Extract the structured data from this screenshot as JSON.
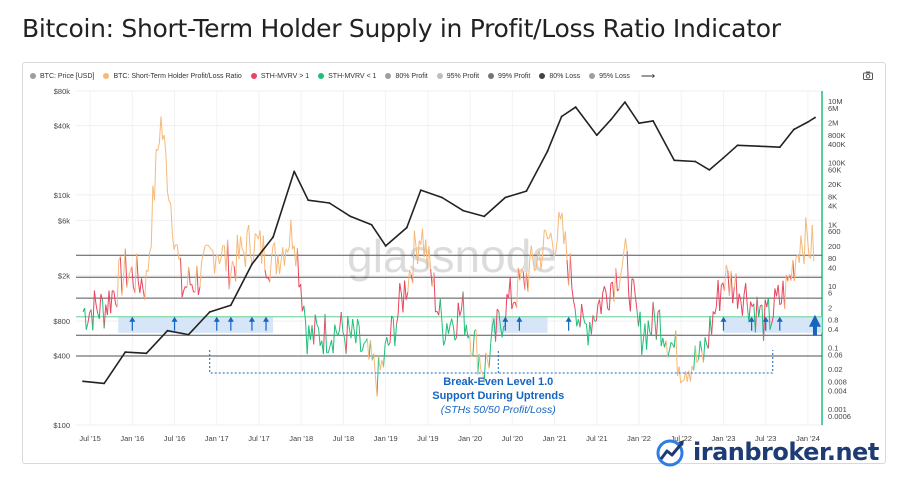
{
  "page": {
    "title": "Bitcoin: Short-Term Holder Supply in Profit/Loss Ratio Indicator"
  },
  "legend": {
    "items": [
      {
        "label": "BTC: Price [USD]",
        "color": "#9e9e9e"
      },
      {
        "label": "BTC: Short-Term Holder Profit/Loss Ratio",
        "color": "#f5b97a"
      },
      {
        "label": "STH-MVRV > 1",
        "color": "#e8455f"
      },
      {
        "label": "STH-MVRV < 1",
        "color": "#1fbf7a"
      },
      {
        "label": "80% Profit",
        "color": "#9e9e9e"
      },
      {
        "label": "95% Profit",
        "color": "#bdbdbd"
      },
      {
        "label": "99% Profit",
        "color": "#757575"
      },
      {
        "label": "80% Loss",
        "color": "#424242"
      },
      {
        "label": "95% Loss",
        "color": "#9e9e9e"
      }
    ],
    "more": "⟶"
  },
  "watermark": "glassnode",
  "annotation": {
    "line1": "Break-Even Level 1.0",
    "line2": "Support During Uptrends",
    "line3": "(STHs 50/50 Profit/Loss)"
  },
  "brand": {
    "name": "iranbroker.net"
  },
  "colors": {
    "price": "#222222",
    "ratio": "#f5b97a",
    "above": "#e8455f",
    "below": "#1fbf7a",
    "accent_axis": "#1fbf7a",
    "annotation": "#1565c0",
    "highlight": "#cfe0f7"
  },
  "chart_data": {
    "type": "line",
    "x_axis": {
      "ticks": [
        "Jul '15",
        "Jan '16",
        "Jul '16",
        "Jan '17",
        "Jul '17",
        "Jan '18",
        "Jul '18",
        "Jan '19",
        "Jul '19",
        "Jan '20",
        "Jul '20",
        "Jan '21",
        "Jul '21",
        "Jan '22",
        "Jul '22",
        "Jan '23",
        "Jul '23",
        "Jan '24"
      ],
      "range": [
        "2015-05",
        "2024-03"
      ]
    },
    "y_left": {
      "scale": "log",
      "unit": "USD",
      "ticks": [
        "$80k",
        "$40k",
        "$10k",
        "$6k",
        "$2k",
        "$800",
        "$400",
        "$100"
      ],
      "range": [
        100,
        80000
      ]
    },
    "y_right": {
      "scale": "log",
      "ticks": [
        "10M",
        "6M",
        "2M",
        "800K",
        "400K",
        "100K",
        "60K",
        "20K",
        "8K",
        "4K",
        "1K",
        "600",
        "200",
        "80",
        "40",
        "10",
        "6",
        "2",
        "0.8",
        "0.4",
        "0.1",
        "0.06",
        "0.02",
        "0.008",
        "0.004",
        "0.001",
        "0.0006"
      ],
      "range": [
        0.0006,
        10000000
      ]
    },
    "thresholds": [
      {
        "name": "99% Profit",
        "value": 99
      },
      {
        "name": "95% Profit",
        "value": 19
      },
      {
        "name": "80% Profit",
        "value": 4
      },
      {
        "name": "Break-even",
        "value": 1
      },
      {
        "name": "80% Loss",
        "value": 0.25
      },
      {
        "name": "95% Loss",
        "value": 0.053
      }
    ],
    "series": [
      {
        "name": "BTC: Price [USD]",
        "x": [
          "2015-06",
          "2015-09",
          "2015-12",
          "2016-03",
          "2016-06",
          "2016-09",
          "2016-12",
          "2017-03",
          "2017-06",
          "2017-09",
          "2017-12",
          "2018-02",
          "2018-05",
          "2018-08",
          "2018-11",
          "2019-01",
          "2019-04",
          "2019-06",
          "2019-09",
          "2019-12",
          "2020-03",
          "2020-06",
          "2020-09",
          "2020-12",
          "2021-02",
          "2021-04",
          "2021-07",
          "2021-09",
          "2021-11",
          "2022-01",
          "2022-03",
          "2022-06",
          "2022-09",
          "2022-11",
          "2023-01",
          "2023-03",
          "2023-06",
          "2023-09",
          "2023-11",
          "2024-01",
          "2024-02"
        ],
        "values": [
          240,
          230,
          430,
          420,
          660,
          610,
          960,
          1100,
          2500,
          4300,
          16000,
          9000,
          8500,
          6500,
          5500,
          3600,
          5200,
          11000,
          9500,
          7300,
          6500,
          9500,
          10800,
          24000,
          48000,
          58000,
          33000,
          45000,
          64000,
          42000,
          44000,
          20000,
          19500,
          16500,
          21000,
          27000,
          26500,
          26000,
          37000,
          43000,
          47000
        ]
      },
      {
        "name": "BTC: Short-Term Holder Profit/Loss Ratio",
        "x": [
          "2015-06",
          "2015-09",
          "2015-12",
          "2016-03",
          "2016-05",
          "2016-08",
          "2016-11",
          "2017-01",
          "2017-03",
          "2017-06",
          "2017-09",
          "2017-12",
          "2018-02",
          "2018-06",
          "2018-09",
          "2018-12",
          "2019-03",
          "2019-06",
          "2019-09",
          "2019-12",
          "2020-03",
          "2020-06",
          "2020-09",
          "2020-12",
          "2021-02",
          "2021-05",
          "2021-08",
          "2021-11",
          "2022-01",
          "2022-04",
          "2022-07",
          "2022-10",
          "2023-01",
          "2023-04",
          "2023-07",
          "2023-10",
          "2023-12",
          "2024-02"
        ],
        "values": [
          1.5,
          2,
          30,
          12,
          3000000,
          8,
          25,
          200,
          40,
          300,
          60,
          700,
          0.2,
          0.4,
          0.15,
          0.01,
          2,
          700,
          0.5,
          1.5,
          0.02,
          2,
          20,
          300,
          600,
          0.3,
          5,
          80,
          0.3,
          0.8,
          0.03,
          0.04,
          20,
          6,
          0.6,
          8,
          400,
          150
        ]
      }
    ]
  }
}
